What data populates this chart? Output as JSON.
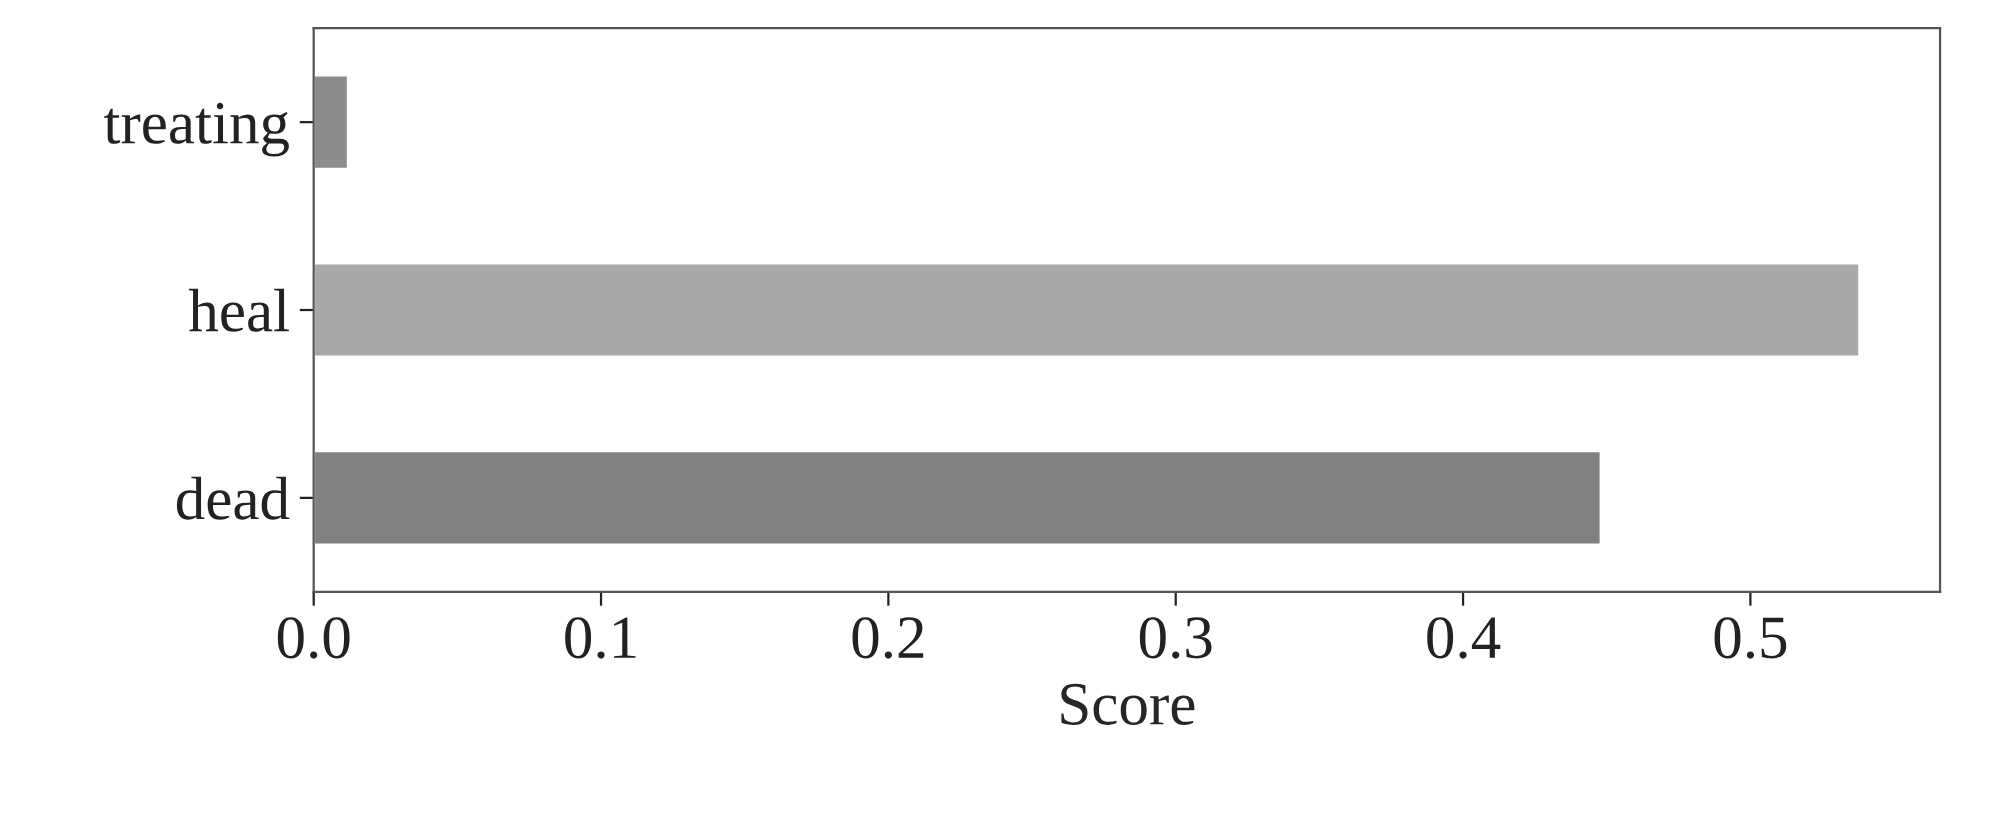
{
  "chart_data": {
    "type": "bar",
    "orientation": "horizontal",
    "xlabel": "Score",
    "categories": [
      "treating",
      "heal",
      "dead"
    ],
    "values": [
      0.012,
      0.538,
      0.448
    ],
    "colors": [
      "#8c8c8c",
      "#a7a8aa",
      "#808182"
    ],
    "xlim": [
      0,
      0.566
    ],
    "xticks": [
      {
        "value": 0,
        "label": "0.0"
      },
      0.1,
      0.2,
      0.3,
      0.4,
      0.5
    ],
    "grid": false
  }
}
